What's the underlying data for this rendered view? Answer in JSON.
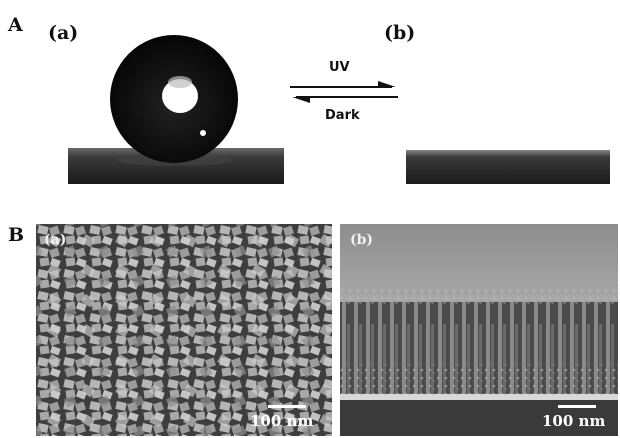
{
  "panel_a": {
    "letter": "A",
    "left_label": "(a)",
    "right_label": "(b)",
    "arrow_top_label": "UV",
    "arrow_bottom_label": "Dark"
  },
  "panel_b": {
    "letter": "B",
    "left_label": "(a)",
    "right_label": "(b)",
    "left_scale": "100 nm",
    "right_scale": "100 nm"
  },
  "colors": {
    "drop": "#0d0d0d",
    "substrate": "#2a2a2a",
    "sem_background": "#6e6e6e"
  }
}
